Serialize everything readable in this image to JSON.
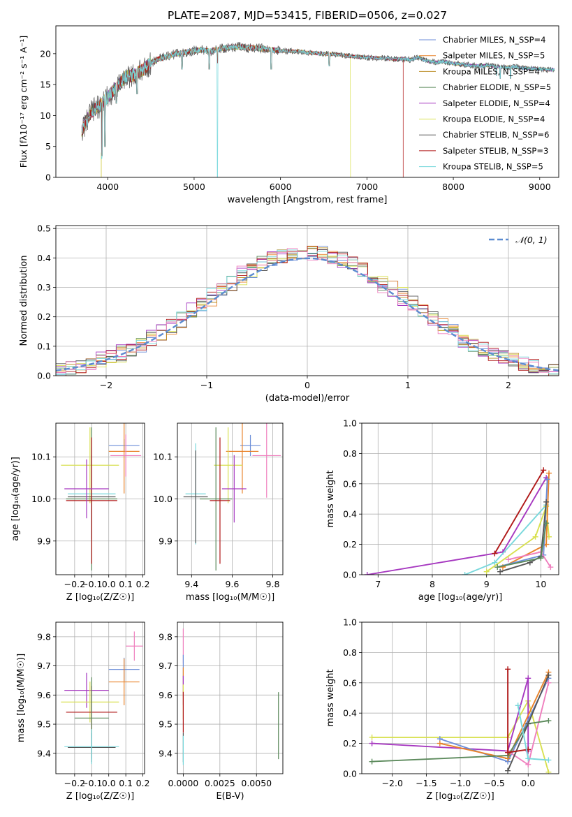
{
  "figure": {
    "title": "PLATE=2087, MJD=53415, FIBERID=0506, z=0.027"
  },
  "colors": {
    "grid": "#b0b0b0",
    "normal_curve": "#5b8bd0"
  },
  "chart_data": [
    {
      "id": "spectrum",
      "type": "line",
      "xlabel": "wavelength [Angstrom, rest frame]",
      "ylabel": "Flux [fλ10⁻¹⁷ erg cm⁻² s⁻¹ A⁻¹]",
      "xlim": [
        3400,
        9220
      ],
      "ylim": [
        0,
        24.5
      ],
      "xticks": [
        4000,
        5000,
        6000,
        7000,
        8000,
        9000
      ],
      "yticks": [
        0,
        5,
        10,
        15,
        20
      ],
      "grid": false,
      "legend_position": "top-right",
      "series": [
        {
          "name": "Chabrier MILES, N_SSP=4",
          "color": "#6c8ed8"
        },
        {
          "name": "Salpeter MILES, N_SSP=5",
          "color": "#e8822a"
        },
        {
          "name": "Kroupa MILES, N_SSP=4",
          "color": "#b8891e"
        },
        {
          "name": "Chabrier ELODIE, N_SSP=5",
          "color": "#5c8a5c"
        },
        {
          "name": "Salpeter ELODIE, N_SSP=4",
          "color": "#a638c0"
        },
        {
          "name": "Kroupa ELODIE, N_SSP=4",
          "color": "#d8e050"
        },
        {
          "name": "Chabrier STELIB, N_SSP=6",
          "color": "#555555"
        },
        {
          "name": "Salpeter STELIB, N_SSP=3",
          "color": "#b01818"
        },
        {
          "name": "Kroupa STELIB, N_SSP=5",
          "color": "#78d8dc"
        }
      ],
      "continuum": [
        [
          3700,
          7.5
        ],
        [
          3800,
          10.5
        ],
        [
          3900,
          11.5
        ],
        [
          4000,
          13.0
        ],
        [
          4100,
          14.5
        ],
        [
          4200,
          16.2
        ],
        [
          4300,
          16.5
        ],
        [
          4400,
          17.3
        ],
        [
          4500,
          18.5
        ],
        [
          4600,
          19.2
        ],
        [
          4700,
          19.6
        ],
        [
          4800,
          20.0
        ],
        [
          4900,
          20.2
        ],
        [
          5000,
          20.5
        ],
        [
          5100,
          20.6
        ],
        [
          5200,
          20.4
        ],
        [
          5300,
          20.8
        ],
        [
          5400,
          21.0
        ],
        [
          5500,
          21.1
        ],
        [
          5600,
          21.0
        ],
        [
          5700,
          20.9
        ],
        [
          5800,
          20.8
        ],
        [
          5900,
          20.6
        ],
        [
          6000,
          20.5
        ],
        [
          6100,
          20.4
        ],
        [
          6200,
          20.4
        ],
        [
          6300,
          20.2
        ],
        [
          6400,
          20.1
        ],
        [
          6500,
          20.0
        ],
        [
          6600,
          19.9
        ],
        [
          6700,
          19.8
        ],
        [
          6800,
          19.6
        ],
        [
          6900,
          19.5
        ],
        [
          7000,
          19.4
        ],
        [
          7100,
          19.3
        ],
        [
          7200,
          19.3
        ],
        [
          7300,
          19.1
        ],
        [
          7400,
          19.2
        ],
        [
          7500,
          19.0
        ],
        [
          7600,
          19.4
        ],
        [
          7700,
          18.8
        ],
        [
          7800,
          18.6
        ],
        [
          7900,
          18.7
        ],
        [
          8000,
          18.4
        ],
        [
          8100,
          18.3
        ],
        [
          8200,
          18.1
        ],
        [
          8300,
          18.0
        ],
        [
          8400,
          18.1
        ],
        [
          8500,
          17.9
        ],
        [
          8600,
          17.8
        ],
        [
          8700,
          17.9
        ],
        [
          8800,
          17.7
        ],
        [
          8900,
          17.6
        ],
        [
          9000,
          17.5
        ],
        [
          9100,
          17.4
        ]
      ],
      "absorption_lines": [
        [
          3934,
          3.5
        ],
        [
          3969,
          5.0
        ],
        [
          4101,
          12.0
        ],
        [
          4340,
          13.5
        ],
        [
          4861,
          17.5
        ],
        [
          5175,
          17.5
        ],
        [
          5270,
          18.5
        ],
        [
          5892,
          17.5
        ],
        [
          6563,
          18.0
        ],
        [
          8498,
          16.5
        ],
        [
          8542,
          16.0
        ],
        [
          8662,
          16.0
        ]
      ]
    },
    {
      "id": "residual-histogram",
      "type": "line",
      "xlabel": "(data-model)/error",
      "ylabel": "Normed distribution",
      "xlim": [
        -2.5,
        2.5
      ],
      "ylim": [
        0,
        0.51
      ],
      "xticks": [
        -2,
        -1,
        0,
        1,
        2
      ],
      "yticks": [
        0.0,
        0.1,
        0.2,
        0.3,
        0.4,
        0.5
      ],
      "grid": true,
      "legend_position": "top-right",
      "normal_label": "𝒩(0, 1)",
      "bin_width": 0.1
    },
    {
      "id": "age-vs-Z",
      "type": "scatter",
      "xlabel": "Z [log₁₀(Z/Z☉)]",
      "ylabel": "age  [log₁₀(age/yr)]",
      "xlim": [
        -0.31,
        0.21
      ],
      "ylim": [
        9.82,
        10.18
      ],
      "xticks": [
        -0.2,
        -0.1,
        0.0,
        0.1,
        0.2
      ],
      "yticks": [
        9.9,
        10.0,
        10.1
      ],
      "grid": true,
      "points": [
        {
          "x": 0.09,
          "y": 10.127,
          "xerr": 0.09,
          "yerr": 0.015,
          "color": "#6c8ed8"
        },
        {
          "x": 0.09,
          "y": 10.113,
          "xerr": 0.09,
          "yerr": 0.1,
          "color": "#e8822a"
        },
        {
          "x": 0.1,
          "y": 10.103,
          "xerr": 0.09,
          "yerr": 0.05,
          "color": "#ef7fbe"
        },
        {
          "x": -0.11,
          "y": 10.08,
          "xerr": 0.17,
          "yerr": 0.09,
          "color": "#d8e050"
        },
        {
          "x": -0.1,
          "y": 10.012,
          "xerr": 0.14,
          "yerr": 0.11,
          "color": "#78d8dc"
        },
        {
          "x": -0.1,
          "y": 10.005,
          "xerr": 0.14,
          "yerr": 0.1,
          "color": "#555555"
        },
        {
          "x": -0.1,
          "y": 10.0,
          "xerr": 0.15,
          "yerr": 0.17,
          "color": "#5c8a5c"
        },
        {
          "x": -0.1,
          "y": 9.996,
          "xerr": 0.15,
          "yerr": 0.15,
          "color": "#b01818"
        },
        {
          "x": -0.13,
          "y": 10.024,
          "xerr": 0.13,
          "yerr": 0.07,
          "color": "#a638c0"
        }
      ]
    },
    {
      "id": "age-vs-mass",
      "type": "scatter",
      "xlabel": "mass [log₁₀(M/M☉)]",
      "ylabel": "",
      "xlim": [
        9.33,
        9.85
      ],
      "ylim": [
        9.82,
        10.18
      ],
      "xticks": [
        9.4,
        9.6,
        9.8
      ],
      "yticks": [
        9.9,
        10.0,
        10.1
      ],
      "grid": true,
      "points": [
        {
          "x": 9.69,
          "y": 10.127,
          "xerr": 0.05,
          "yerr": 0.025,
          "color": "#6c8ed8"
        },
        {
          "x": 9.65,
          "y": 10.113,
          "xerr": 0.08,
          "yerr": 0.1,
          "color": "#e8822a"
        },
        {
          "x": 9.77,
          "y": 10.103,
          "xerr": 0.07,
          "yerr": 0.1,
          "color": "#ef7fbe"
        },
        {
          "x": 9.58,
          "y": 10.08,
          "xerr": 0.07,
          "yerr": 0.09,
          "color": "#d8e050"
        },
        {
          "x": 9.42,
          "y": 10.012,
          "xerr": 0.05,
          "yerr": 0.12,
          "color": "#78d8dc"
        },
        {
          "x": 9.42,
          "y": 10.005,
          "xerr": 0.06,
          "yerr": 0.11,
          "color": "#555555"
        },
        {
          "x": 9.52,
          "y": 10.0,
          "xerr": 0.08,
          "yerr": 0.17,
          "color": "#5c8a5c"
        },
        {
          "x": 9.54,
          "y": 9.996,
          "xerr": 0.05,
          "yerr": 0.15,
          "color": "#b01818"
        },
        {
          "x": 9.61,
          "y": 10.024,
          "xerr": 0.06,
          "yerr": 0.08,
          "color": "#a638c0"
        }
      ]
    },
    {
      "id": "mass-weight-vs-age",
      "type": "line",
      "xlabel": "age  [log₁₀(age/yr)]",
      "ylabel": "mass weight",
      "xlim": [
        6.7,
        10.33
      ],
      "ylim": [
        0,
        1.0
      ],
      "xticks": [
        7,
        8,
        9,
        10
      ],
      "yticks": [
        0.0,
        0.2,
        0.4,
        0.6,
        0.8,
        1.0
      ],
      "grid": true,
      "series": [
        {
          "color": "#a638c0",
          "points": [
            [
              6.8,
              0.0
            ],
            [
              9.3,
              0.15
            ],
            [
              10.1,
              0.64
            ]
          ]
        },
        {
          "color": "#b01818",
          "points": [
            [
              9.15,
              0.14
            ],
            [
              10.05,
              0.69
            ]
          ]
        },
        {
          "color": "#78d8dc",
          "points": [
            [
              8.6,
              0.0
            ],
            [
              9.15,
              0.08
            ],
            [
              10.1,
              0.46
            ]
          ]
        },
        {
          "color": "#d8e050",
          "points": [
            [
              9.0,
              0.02
            ],
            [
              9.9,
              0.25
            ],
            [
              10.1,
              0.45
            ],
            [
              10.15,
              0.25
            ]
          ]
        },
        {
          "color": "#e8822a",
          "points": [
            [
              9.3,
              0.05
            ],
            [
              10.1,
              0.2
            ],
            [
              10.15,
              0.67
            ]
          ]
        },
        {
          "color": "#6c8ed8",
          "points": [
            [
              9.2,
              0.05
            ],
            [
              10.05,
              0.13
            ],
            [
              10.12,
              0.63
            ]
          ]
        },
        {
          "color": "#ef7fbe",
          "points": [
            [
              9.4,
              0.1
            ],
            [
              10.0,
              0.15
            ],
            [
              10.18,
              0.05
            ]
          ]
        },
        {
          "color": "#555555",
          "points": [
            [
              9.25,
              0.02
            ],
            [
              9.8,
              0.08
            ],
            [
              10.0,
              0.12
            ],
            [
              10.1,
              0.48
            ]
          ]
        },
        {
          "color": "#5c8a5c",
          "points": [
            [
              9.2,
              0.05
            ],
            [
              10.0,
              0.11
            ],
            [
              10.1,
              0.34
            ]
          ]
        }
      ]
    },
    {
      "id": "mass-vs-Z",
      "type": "scatter",
      "xlabel": "Z [log₁₀(Z/Z☉)]",
      "ylabel": "mass [log₁₀(M/M☉)]",
      "xlim": [
        -0.31,
        0.21
      ],
      "ylim": [
        9.33,
        9.85
      ],
      "xticks": [
        -0.2,
        -0.1,
        0.0,
        0.1,
        0.2
      ],
      "yticks": [
        9.4,
        9.5,
        9.6,
        9.7,
        9.8
      ],
      "grid": true,
      "points": [
        {
          "x": 0.15,
          "y": 9.768,
          "xerr": 0.05,
          "yerr": 0.05,
          "color": "#ef7fbe"
        },
        {
          "x": 0.09,
          "y": 9.688,
          "xerr": 0.09,
          "yerr": 0.04,
          "color": "#6c8ed8"
        },
        {
          "x": 0.09,
          "y": 9.645,
          "xerr": 0.09,
          "yerr": 0.08,
          "color": "#e8822a"
        },
        {
          "x": -0.13,
          "y": 9.616,
          "xerr": 0.13,
          "yerr": 0.06,
          "color": "#a638c0"
        },
        {
          "x": -0.11,
          "y": 9.576,
          "xerr": 0.17,
          "yerr": 0.07,
          "color": "#d8e050"
        },
        {
          "x": -0.1,
          "y": 9.541,
          "xerr": 0.15,
          "yerr": 0.09,
          "color": "#b01818"
        },
        {
          "x": -0.1,
          "y": 9.521,
          "xerr": 0.1,
          "yerr": 0.14,
          "color": "#5c8a5c"
        },
        {
          "x": -0.1,
          "y": 9.42,
          "xerr": 0.14,
          "yerr": 0.05,
          "color": "#555555"
        },
        {
          "x": -0.1,
          "y": 9.423,
          "xerr": 0.16,
          "yerr": 0.06,
          "color": "#78d8dc"
        }
      ]
    },
    {
      "id": "mass-vs-ebv",
      "type": "scatter",
      "xlabel": "E(B-V)",
      "ylabel": "",
      "xlim": [
        -0.0004,
        0.0068
      ],
      "ylim": [
        9.33,
        9.85
      ],
      "xticks": [
        0.0,
        0.0025,
        0.005
      ],
      "xticklabels": [
        "0.0000",
        "0.0025",
        "0.0050"
      ],
      "yticks": [
        9.4,
        9.5,
        9.6,
        9.7,
        9.8
      ],
      "grid": true,
      "points": [
        {
          "x": 0.0,
          "y": 9.768,
          "xerr": 0.0,
          "yerr": 0.06,
          "color": "#ef7fbe"
        },
        {
          "x": 0.0,
          "y": 9.688,
          "xerr": 0.0,
          "yerr": 0.05,
          "color": "#6c8ed8"
        },
        {
          "x": 0.0,
          "y": 9.645,
          "xerr": 0.0,
          "yerr": 0.05,
          "color": "#e8822a"
        },
        {
          "x": 0.0,
          "y": 9.616,
          "xerr": 0.0,
          "yerr": 0.05,
          "color": "#a638c0"
        },
        {
          "x": 0.0,
          "y": 9.576,
          "xerr": 0.0,
          "yerr": 0.06,
          "color": "#d8e050"
        },
        {
          "x": 0.0,
          "y": 9.541,
          "xerr": 0.0,
          "yerr": 0.07,
          "color": "#b01818"
        },
        {
          "x": 0.0,
          "y": 9.42,
          "xerr": 0.0,
          "yerr": 0.05,
          "color": "#555555"
        },
        {
          "x": 0.0,
          "y": 9.41,
          "xerr": 0.0,
          "yerr": 0.05,
          "color": "#78d8dc"
        },
        {
          "x": 0.0065,
          "y": 9.495,
          "xerr": 0.0,
          "yerr": 0.115,
          "color": "#5c8a5c"
        }
      ]
    },
    {
      "id": "mass-weight-vs-Z",
      "type": "line",
      "xlabel": "Z [log₁₀(Z/Z☉)]",
      "ylabel": "mass weight",
      "xlim": [
        -2.45,
        0.45
      ],
      "ylim": [
        0,
        1.0
      ],
      "xticks": [
        -2.0,
        -1.5,
        -1.0,
        -0.5,
        0.0
      ],
      "yticks": [
        0.0,
        0.2,
        0.4,
        0.6,
        0.8,
        1.0
      ],
      "grid": true,
      "series": [
        {
          "color": "#d8e050",
          "points": [
            [
              -2.3,
              0.24
            ],
            [
              -0.3,
              0.24
            ],
            [
              0.0,
              0.48
            ],
            [
              0.3,
              0.01
            ]
          ]
        },
        {
          "color": "#a638c0",
          "points": [
            [
              -2.3,
              0.2
            ],
            [
              -0.3,
              0.15
            ],
            [
              0.0,
              0.63
            ],
            [
              0.0,
              0.15
            ]
          ]
        },
        {
          "color": "#6c8ed8",
          "points": [
            [
              -1.3,
              0.23
            ],
            [
              -0.3,
              0.08
            ],
            [
              0.3,
              0.63
            ]
          ]
        },
        {
          "color": "#e8822a",
          "points": [
            [
              -1.3,
              0.2
            ],
            [
              -0.3,
              0.1
            ],
            [
              0.3,
              0.67
            ]
          ]
        },
        {
          "color": "#ef7fbe",
          "points": [
            [
              -0.3,
              0.15
            ],
            [
              0.0,
              0.06
            ],
            [
              0.3,
              0.6
            ]
          ]
        },
        {
          "color": "#5c8a5c",
          "points": [
            [
              -2.3,
              0.08
            ],
            [
              -0.3,
              0.12
            ],
            [
              0.0,
              0.33
            ],
            [
              0.3,
              0.35
            ]
          ]
        },
        {
          "color": "#555555",
          "points": [
            [
              -0.3,
              0.02
            ],
            [
              0.0,
              0.33
            ],
            [
              0.3,
              0.65
            ]
          ]
        },
        {
          "color": "#b01818",
          "points": [
            [
              -0.3,
              0.69
            ],
            [
              -0.3,
              0.14
            ],
            [
              0.0,
              0.16
            ]
          ]
        },
        {
          "color": "#78d8dc",
          "points": [
            [
              -0.15,
              0.45
            ],
            [
              0.0,
              0.1
            ],
            [
              0.3,
              0.09
            ]
          ]
        }
      ]
    }
  ]
}
